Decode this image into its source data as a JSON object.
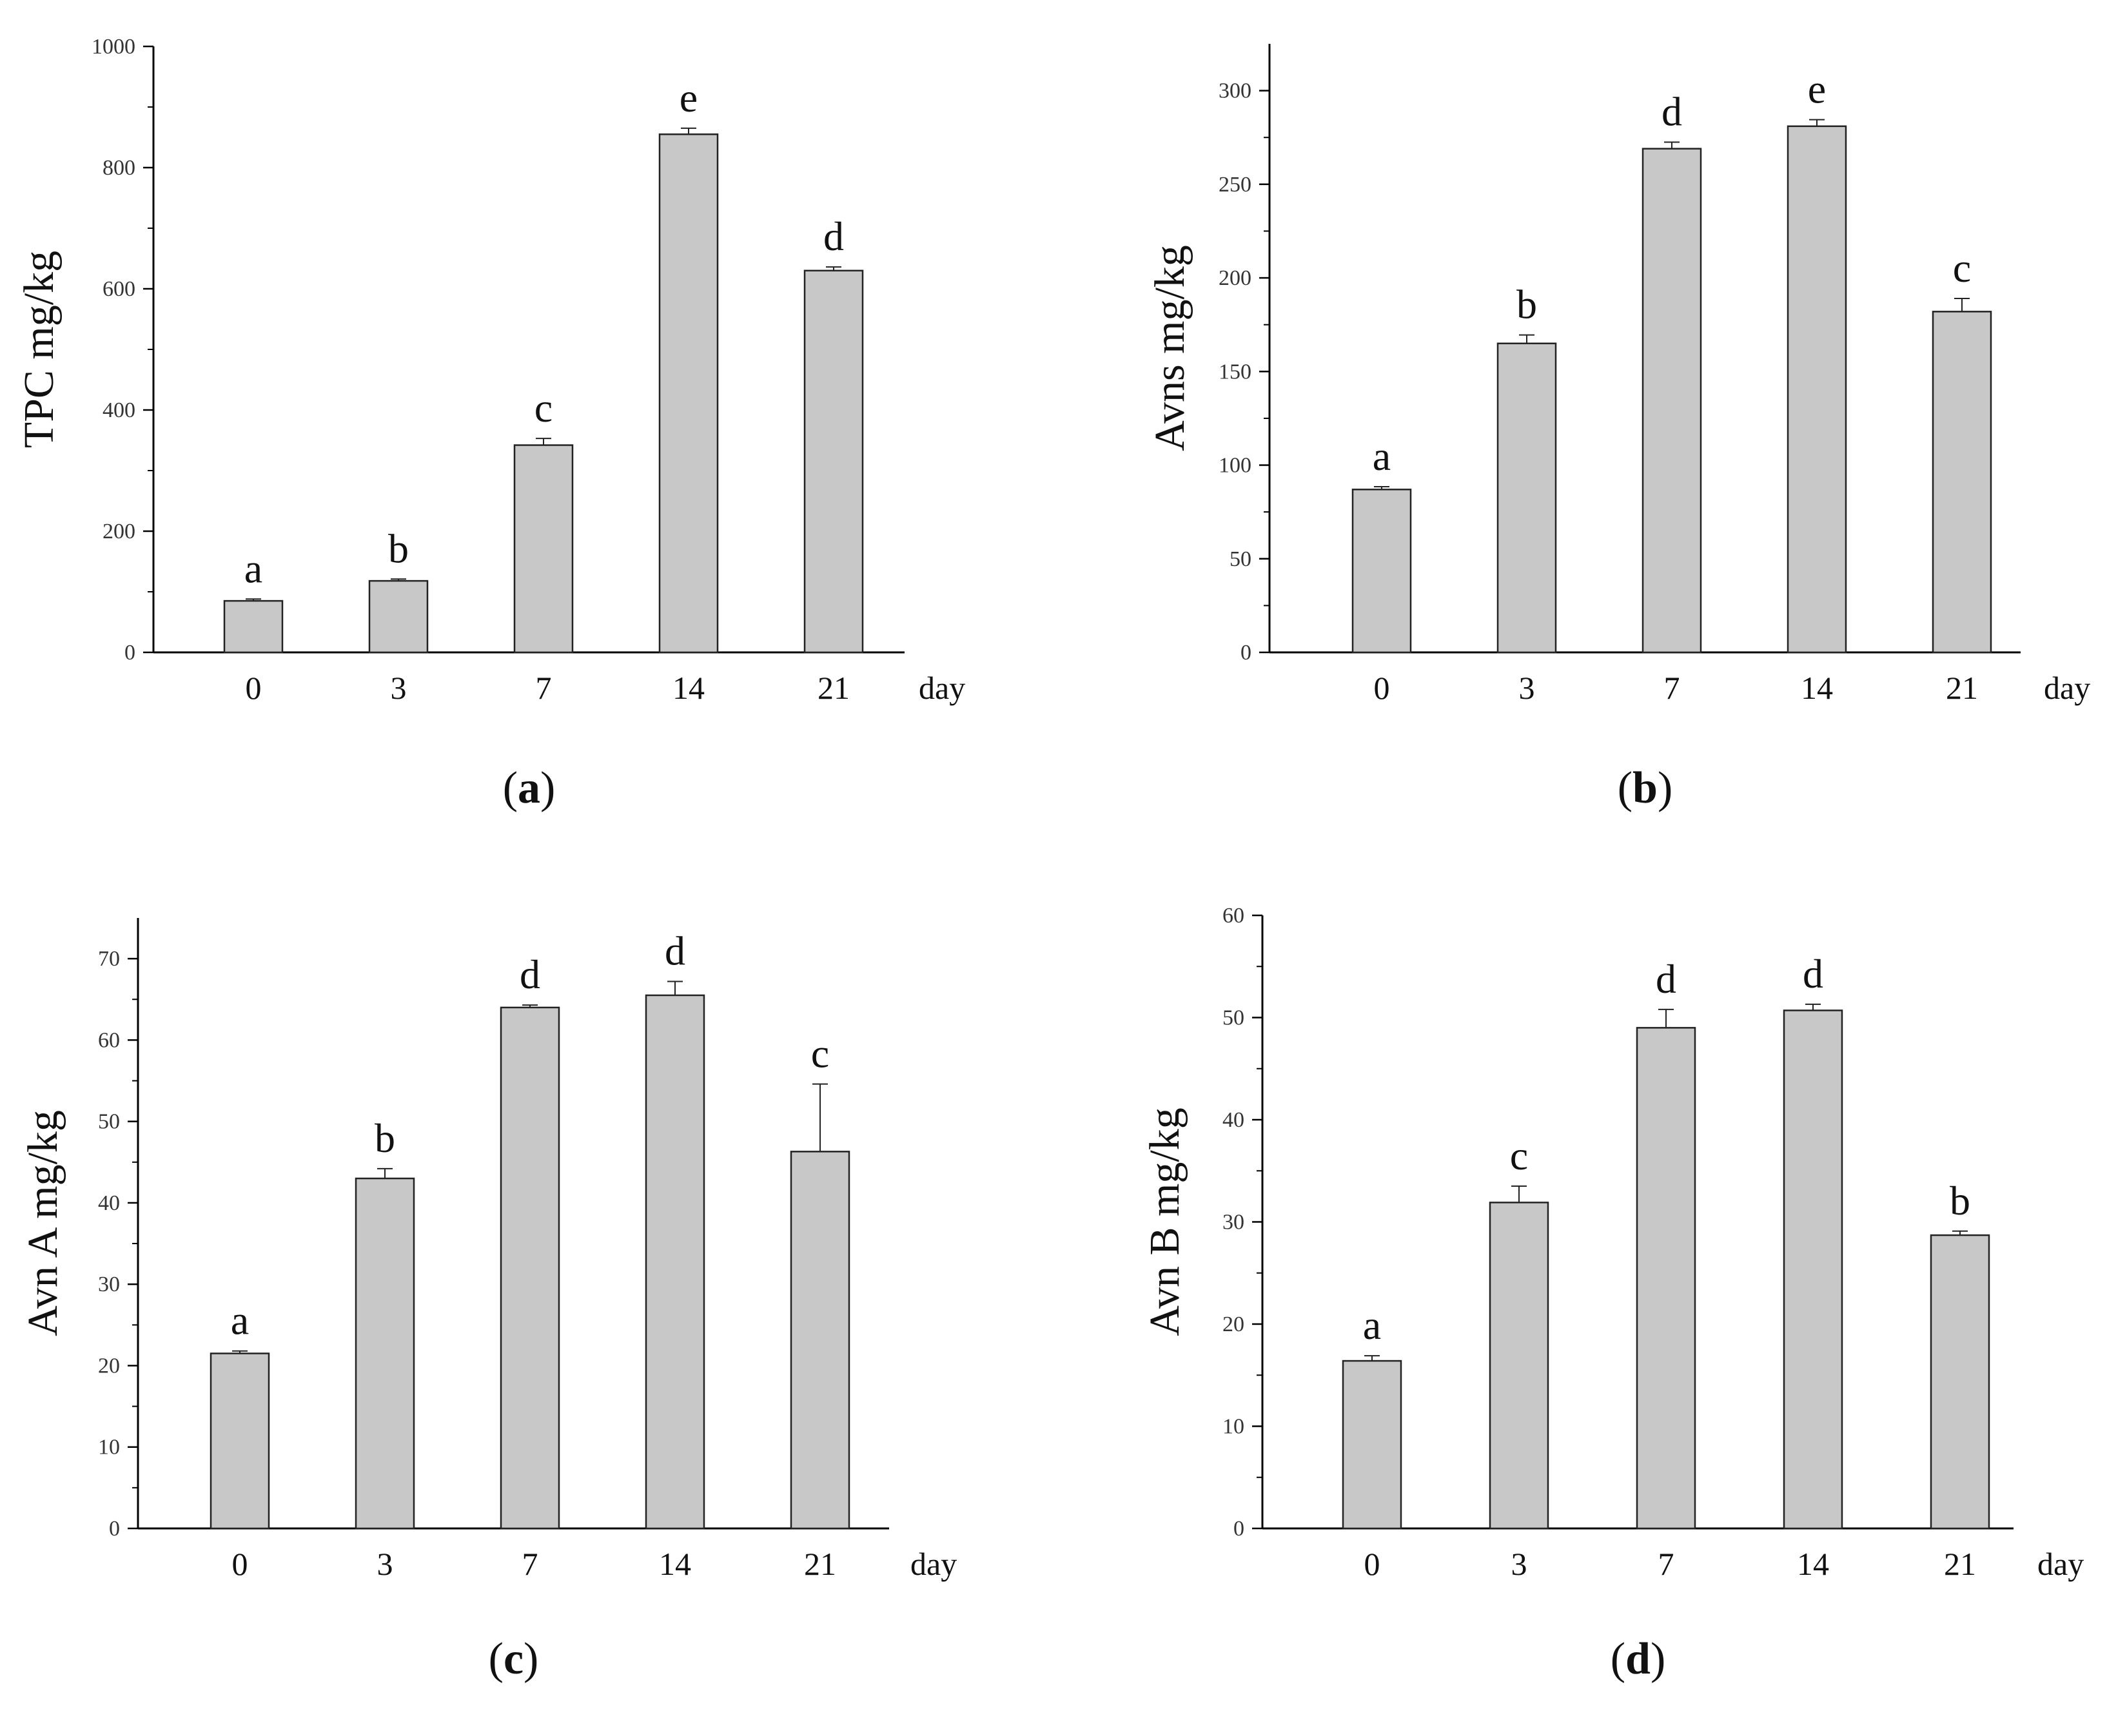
{
  "chart_data": [
    {
      "type": "bar",
      "panel_label": "a",
      "categories": [
        "0",
        "3",
        "7",
        "14",
        "21"
      ],
      "values": [
        85,
        118,
        342,
        855,
        630
      ],
      "errors": [
        3,
        3,
        11,
        10,
        6
      ],
      "significance": [
        "a",
        "b",
        "c",
        "e",
        "d"
      ],
      "ylabel": "TPC mg/kg",
      "xunit": "day",
      "ylim": [
        0,
        1000
      ],
      "yticks": [
        "0",
        "200",
        "400",
        "600",
        "800",
        "1000"
      ],
      "bar_color": "#c8c8c8"
    },
    {
      "type": "bar",
      "panel_label": "b",
      "categories": [
        "0",
        "3",
        "7",
        "14",
        "21"
      ],
      "values": [
        87,
        165,
        269,
        281,
        182
      ],
      "errors": [
        1.5,
        4.5,
        3.5,
        3.5,
        7
      ],
      "significance": [
        "a",
        "b",
        "d",
        "e",
        "c"
      ],
      "ylabel": "Avns mg/kg",
      "xunit": "day",
      "ylim": [
        0,
        325
      ],
      "yticks": [
        "0",
        "50",
        "100",
        "150",
        "200",
        "250",
        "300"
      ],
      "bar_color": "#c8c8c8"
    },
    {
      "type": "bar",
      "panel_label": "c",
      "categories": [
        "0",
        "3",
        "7",
        "14",
        "21"
      ],
      "values": [
        21.5,
        43,
        64,
        65.5,
        46.3
      ],
      "errors": [
        0.3,
        1.2,
        0.3,
        1.7,
        8.3
      ],
      "significance": [
        "a",
        "b",
        "d",
        "d",
        "c"
      ],
      "ylabel": "Avn A mg/kg",
      "xunit": "day",
      "ylim": [
        0,
        75
      ],
      "yticks": [
        "0",
        "10",
        "20",
        "30",
        "40",
        "50",
        "60",
        "70"
      ],
      "bar_color": "#c8c8c8"
    },
    {
      "type": "bar",
      "panel_label": "d",
      "categories": [
        "0",
        "3",
        "7",
        "14",
        "21"
      ],
      "values": [
        16.4,
        31.9,
        49,
        50.7,
        28.7
      ],
      "errors": [
        0.5,
        1.6,
        1.8,
        0.6,
        0.4
      ],
      "significance": [
        "a",
        "c",
        "d",
        "d",
        "b"
      ],
      "ylabel": "Avn B mg/kg",
      "xunit": "day",
      "ylim": [
        0,
        60
      ],
      "yticks": [
        "0",
        "10",
        "20",
        "30",
        "40",
        "50",
        "60"
      ],
      "bar_color": "#c8c8c8"
    }
  ]
}
